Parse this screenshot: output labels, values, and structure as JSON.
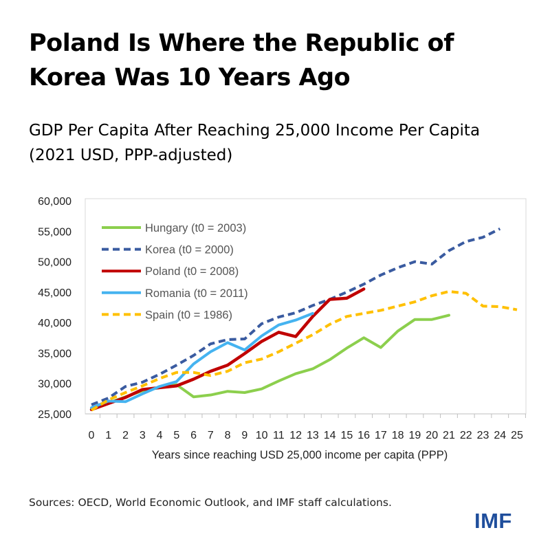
{
  "title": "Poland Is Where the Republic of Korea Was 10 Years Ago",
  "title_lines": [
    "Poland Is Where the Republic of",
    "Korea Was 10 Years Ago"
  ],
  "subtitle_lines": [
    "GDP Per Capita After Reaching 25,000 Income Per Capita",
    "(2021 USD, PPP-adjusted)"
  ],
  "source": "Sources: OECD, World Economic Outlook, and IMF staff calculations.",
  "logo": "IMF",
  "chart_data": {
    "type": "line",
    "xlabel": "Years since reaching USD 25,000 income per capita (PPP)",
    "ylabel": "",
    "xlim": [
      0,
      25
    ],
    "ylim": [
      25000,
      60000
    ],
    "yticks": [
      25000,
      30000,
      35000,
      40000,
      45000,
      50000,
      55000,
      60000
    ],
    "ytick_labels": [
      "25,000",
      "30,000",
      "35,000",
      "40,000",
      "45,000",
      "50,000",
      "55,000",
      "60,000"
    ],
    "xticks": [
      0,
      1,
      2,
      3,
      4,
      5,
      6,
      7,
      8,
      9,
      10,
      11,
      12,
      13,
      14,
      15,
      16,
      17,
      18,
      19,
      20,
      21,
      22,
      23,
      24,
      25
    ],
    "grid": false,
    "legend_position": "top-left",
    "series": [
      {
        "name": "Hungary (t0 = 2003)",
        "color": "#8ccf4d",
        "dash": false,
        "values": [
          25800,
          26800,
          27800,
          28800,
          29300,
          29800,
          27800,
          28100,
          28700,
          28500,
          29100,
          30400,
          31600,
          32400,
          33900,
          35800,
          37500,
          35900,
          38600,
          40500,
          40500,
          41200
        ]
      },
      {
        "name": "Korea (t0 = 2000)",
        "color": "#3a5ba0",
        "dash": true,
        "values": [
          26500,
          27600,
          29500,
          30200,
          31500,
          33000,
          34600,
          36500,
          37200,
          37300,
          39800,
          40900,
          41600,
          42800,
          43800,
          45000,
          46300,
          47800,
          49000,
          50000,
          49600,
          51800,
          53300,
          54000,
          55400
        ]
      },
      {
        "name": "Poland (t0 = 2008)",
        "color": "#c00000",
        "dash": false,
        "values": [
          25700,
          26700,
          27700,
          29000,
          29300,
          29600,
          30700,
          32000,
          33000,
          34900,
          36900,
          38400,
          37700,
          41000,
          43800,
          44000,
          45500
        ]
      },
      {
        "name": "Romania (t0 = 2011)",
        "color": "#45b3f0",
        "dash": false,
        "values": [
          26000,
          27100,
          27000,
          28300,
          29500,
          30300,
          33200,
          35200,
          36700,
          35500,
          37800,
          39600,
          40400,
          41500
        ]
      },
      {
        "name": "Spain (t0 = 1986)",
        "color": "#ffc000",
        "dash": true,
        "values": [
          25600,
          27300,
          28500,
          29600,
          30800,
          31800,
          31800,
          31300,
          32000,
          33400,
          34000,
          35200,
          36600,
          38000,
          39700,
          41000,
          41500,
          42000,
          42700,
          43400,
          44400,
          45100,
          44800,
          42700,
          42600,
          42100
        ]
      }
    ]
  }
}
